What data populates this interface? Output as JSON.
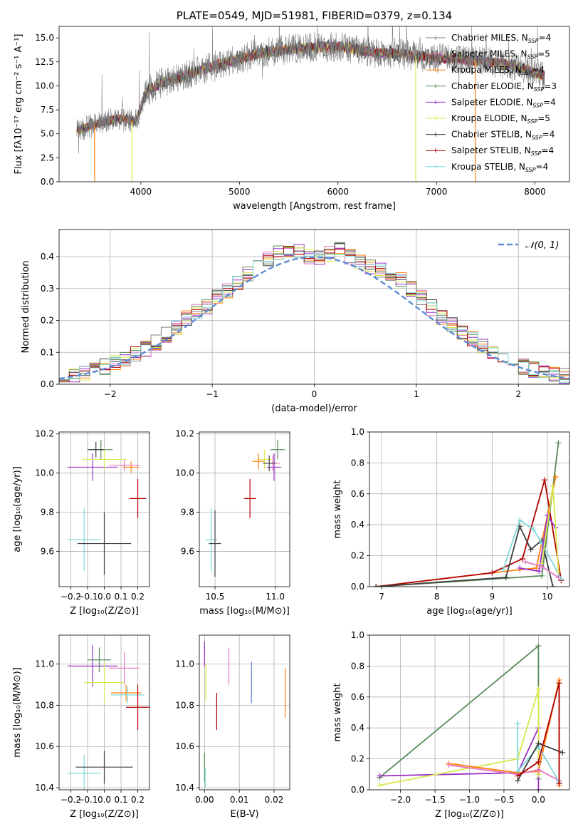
{
  "colors": {
    "chabrier_miles": "#808080",
    "salpeter_miles": "#e377c2",
    "kroupa_miles": "#ff7f0e",
    "chabrier_elodie": "#5a8a5a",
    "salpeter_elodie": "#9b30c8",
    "kroupa_elodie": "#d8e84a",
    "chabrier_stelib": "#404040",
    "salpeter_stelib": "#b00000",
    "kroupa_stelib": "#7fd8d8",
    "normal_curve": "#5b8bd4"
  },
  "chart_data": [
    {
      "id": "spectrum",
      "type": "line",
      "title": "PLATE=0549, MJD=51981, FIBERID=0379, z=0.134",
      "xlabel": "wavelength [Angstrom, rest frame]",
      "ylabel": "Flux [fλ10⁻¹⁷ erg cm⁻² s⁻¹ A⁻¹]",
      "xlim": [
        3170,
        8350
      ],
      "ylim": [
        0,
        16.2
      ],
      "xticks": [
        4000,
        5000,
        6000,
        7000,
        8000
      ],
      "yticks": [
        0.0,
        2.5,
        5.0,
        7.5,
        10.0,
        12.5,
        15.0
      ],
      "legend": "upper-right",
      "continuum": {
        "x": [
          3350,
          3500,
          3650,
          3800,
          3950,
          4050,
          4200,
          4400,
          4600,
          4800,
          5000,
          5200,
          5400,
          5600,
          5800,
          6000,
          6200,
          6400,
          6600,
          6800,
          7000,
          7200,
          7400,
          7600,
          7800,
          8000,
          8100
        ],
        "y": [
          5.3,
          5.9,
          6.3,
          6.6,
          6.3,
          9.3,
          10.3,
          10.9,
          11.6,
          12.3,
          12.8,
          13.4,
          13.7,
          13.9,
          14.0,
          14.1,
          13.8,
          13.4,
          13.4,
          13.1,
          12.9,
          12.8,
          12.6,
          12.4,
          12.0,
          11.4,
          11.0
        ]
      },
      "series": [
        {
          "name": "Chabrier MILES, N_SSP=4",
          "label_main": "Chabrier MILES, N",
          "label_sub": "SSP",
          "label_tail": "=4",
          "color_key": "chabrier_miles"
        },
        {
          "name": "Salpeter MILES, N_SSP=5",
          "label_main": "Salpeter MILES, N",
          "label_sub": "SSP",
          "label_tail": "=5",
          "color_key": "salpeter_miles"
        },
        {
          "name": "Kroupa MILES, N_SSP=4",
          "label_main": "Kroupa MILES, N",
          "label_sub": "SSP",
          "label_tail": "=4",
          "color_key": "kroupa_miles"
        },
        {
          "name": "Chabrier ELODIE, N_SSP=3",
          "label_main": "Chabrier ELODIE, N",
          "label_sub": "SSP",
          "label_tail": "=3",
          "color_key": "chabrier_elodie"
        },
        {
          "name": "Salpeter ELODIE, N_SSP=4",
          "label_main": "Salpeter ELODIE, N",
          "label_sub": "SSP",
          "label_tail": "=4",
          "color_key": "salpeter_elodie"
        },
        {
          "name": "Kroupa ELODIE, N_SSP=5",
          "label_main": "Kroupa ELODIE, N",
          "label_sub": "SSP",
          "label_tail": "=5",
          "color_key": "kroupa_elodie"
        },
        {
          "name": "Chabrier STELIB, N_SSP=4",
          "label_main": "Chabrier STELIB, N",
          "label_sub": "SSP",
          "label_tail": "=4",
          "color_key": "chabrier_stelib"
        },
        {
          "name": "Salpeter STELIB, N_SSP=4",
          "label_main": "Salpeter STELIB, N",
          "label_sub": "SSP",
          "label_tail": "=4",
          "color_key": "salpeter_stelib"
        },
        {
          "name": "Kroupa STELIB, N_SSP=4",
          "label_main": "Kroupa STELIB, N",
          "label_sub": "SSP",
          "label_tail": "=4",
          "color_key": "kroupa_stelib"
        }
      ],
      "drops": [
        {
          "x": 3530,
          "color_key": "kroupa_miles"
        },
        {
          "x": 3910,
          "color_key": "kroupa_elodie"
        },
        {
          "x": 6790,
          "color_key": "kroupa_elodie"
        },
        {
          "x": 7395,
          "color_key": "kroupa_miles"
        }
      ]
    },
    {
      "id": "residuals",
      "type": "histogram",
      "xlabel": "(data-model)/error",
      "ylabel": "Normed distribution",
      "xlim": [
        -2.5,
        2.5
      ],
      "ylim": [
        0,
        0.485
      ],
      "xticks": [
        -2,
        -1,
        0,
        1,
        2
      ],
      "xtick_labels": [
        "−2",
        "−1",
        "0",
        "1",
        "2"
      ],
      "yticks": [
        0.0,
        0.1,
        0.2,
        0.3,
        0.4
      ],
      "grid": true,
      "bin_width": 0.1,
      "curve_label": "𝒩(0, 1)",
      "legend": "upper-right",
      "bins_center": [
        -2.45,
        -2.35,
        -2.25,
        -2.15,
        -2.05,
        -1.95,
        -1.85,
        -1.75,
        -1.65,
        -1.55,
        -1.45,
        -1.35,
        -1.25,
        -1.15,
        -1.05,
        -0.95,
        -0.85,
        -0.75,
        -0.65,
        -0.55,
        -0.45,
        -0.35,
        -0.25,
        -0.15,
        -0.05,
        0.05,
        0.15,
        0.25,
        0.35,
        0.45,
        0.55,
        0.65,
        0.75,
        0.85,
        0.95,
        1.05,
        1.15,
        1.25,
        1.35,
        1.45,
        1.55,
        1.65,
        1.75,
        1.85,
        1.95,
        2.05,
        2.15,
        2.25,
        2.35,
        2.45
      ],
      "hist_values": [
        0.02,
        0.025,
        0.035,
        0.045,
        0.055,
        0.065,
        0.08,
        0.095,
        0.11,
        0.13,
        0.155,
        0.18,
        0.205,
        0.225,
        0.245,
        0.27,
        0.295,
        0.32,
        0.345,
        0.37,
        0.39,
        0.41,
        0.42,
        0.415,
        0.4,
        0.4,
        0.41,
        0.42,
        0.4,
        0.385,
        0.37,
        0.355,
        0.345,
        0.33,
        0.3,
        0.27,
        0.24,
        0.21,
        0.185,
        0.16,
        0.14,
        0.12,
        0.1,
        0.085,
        0.07,
        0.055,
        0.045,
        0.035,
        0.03,
        0.025
      ]
    },
    {
      "id": "age_vs_z",
      "type": "scatter",
      "xlabel": "Z [log₁₀(Z/Z⊙)]",
      "ylabel": "age  [log₁₀(age/yr)]",
      "xlim": [
        -0.27,
        0.27
      ],
      "ylim": [
        9.42,
        10.21
      ],
      "xticks": [
        -0.2,
        -0.1,
        0.0,
        0.1,
        0.2
      ],
      "xtick_labels": [
        "−0.2",
        "−0.1",
        "0.0",
        "0.1",
        "0.2"
      ],
      "yticks": [
        9.6,
        9.8,
        10.0,
        10.2
      ],
      "grid": true,
      "points": [
        {
          "color_key": "salpeter_elodie",
          "x": -0.07,
          "xerr": 0.15,
          "y": 10.03,
          "yerr": 0.07
        },
        {
          "color_key": "chabrier_elodie",
          "x": -0.02,
          "xerr": 0.07,
          "y": 10.12,
          "yerr": 0.05
        },
        {
          "color_key": "chabrier_stelib",
          "x": -0.05,
          "xerr": 0.05,
          "y": 10.12,
          "yerr": 0.04
        },
        {
          "color_key": "kroupa_elodie",
          "x": 0.0,
          "xerr": 0.13,
          "y": 10.07,
          "yerr": 0.05
        },
        {
          "color_key": "salpeter_miles",
          "x": 0.12,
          "xerr": 0.09,
          "y": 10.04,
          "yerr": 0.03
        },
        {
          "color_key": "kroupa_miles",
          "x": 0.16,
          "xerr": 0.05,
          "y": 10.03,
          "yerr": 0.03
        },
        {
          "color_key": "salpeter_stelib",
          "x": 0.2,
          "xerr": 0.05,
          "y": 9.87,
          "yerr": 0.1
        },
        {
          "color_key": "kroupa_stelib",
          "x": -0.12,
          "xerr": 0.1,
          "y": 9.66,
          "yerr": 0.16
        },
        {
          "color_key": "chabrier_stelib",
          "x": 0.0,
          "xerr": 0.16,
          "y": 9.64,
          "yerr": 0.16
        }
      ]
    },
    {
      "id": "age_vs_mass",
      "type": "scatter",
      "xlabel": "mass [log₁₀(M/M⊙)]",
      "ylabel": "",
      "xlim": [
        10.37,
        11.12
      ],
      "ylim": [
        9.42,
        10.21
      ],
      "xticks": [
        10.5,
        11.0
      ],
      "xtick_labels": [
        "10.5",
        "11.0"
      ],
      "yticks": [
        9.6,
        9.8,
        10.0,
        10.2
      ],
      "grid": true,
      "points": [
        {
          "color_key": "chabrier_elodie",
          "x": 11.02,
          "xerr": 0.06,
          "y": 10.12,
          "yerr": 0.05
        },
        {
          "color_key": "salpeter_elodie",
          "x": 10.99,
          "xerr": 0.06,
          "y": 10.03,
          "yerr": 0.07
        },
        {
          "color_key": "kroupa_elodie",
          "x": 10.91,
          "xerr": 0.06,
          "y": 10.07,
          "yerr": 0.05
        },
        {
          "color_key": "salpeter_miles",
          "x": 10.98,
          "xerr": 0.06,
          "y": 10.05,
          "yerr": 0.04
        },
        {
          "color_key": "kroupa_miles",
          "x": 10.86,
          "xerr": 0.05,
          "y": 10.06,
          "yerr": 0.04
        },
        {
          "color_key": "chabrier_stelib",
          "x": 10.95,
          "xerr": 0.05,
          "y": 10.05,
          "yerr": 0.04
        },
        {
          "color_key": "salpeter_stelib",
          "x": 10.79,
          "xerr": 0.05,
          "y": 9.87,
          "yerr": 0.1
        },
        {
          "color_key": "kroupa_stelib",
          "x": 10.47,
          "xerr": 0.05,
          "y": 9.66,
          "yerr": 0.16
        },
        {
          "color_key": "chabrier_stelib",
          "x": 10.5,
          "xerr": 0.05,
          "y": 9.64,
          "yerr": 0.17
        }
      ]
    },
    {
      "id": "massweight_vs_age",
      "type": "line",
      "xlabel": "age  [log₁₀(age/yr)]",
      "ylabel": "mass weight",
      "xlim": [
        6.78,
        10.4
      ],
      "ylim": [
        0,
        1.0
      ],
      "xticks": [
        7,
        8,
        9,
        10
      ],
      "yticks": [
        0.0,
        0.2,
        0.4,
        0.6,
        0.8,
        1.0
      ],
      "grid": true,
      "series": [
        {
          "color_key": "chabrier_elodie",
          "x": [
            6.9,
            9.9,
            10.2
          ],
          "y": [
            0.0,
            0.07,
            0.93
          ]
        },
        {
          "color_key": "kroupa_miles",
          "x": [
            6.9,
            9.5,
            9.8,
            10.15
          ],
          "y": [
            0.0,
            0.11,
            0.12,
            0.71
          ]
        },
        {
          "color_key": "salpeter_stelib",
          "x": [
            6.9,
            9.0,
            9.55,
            9.95,
            10.25
          ],
          "y": [
            0.0,
            0.09,
            0.18,
            0.69,
            0.04
          ]
        },
        {
          "color_key": "chabrier_stelib",
          "x": [
            6.9,
            9.25,
            9.5,
            9.7,
            9.9,
            10.1
          ],
          "y": [
            0.0,
            0.06,
            0.39,
            0.24,
            0.3,
            0.0
          ]
        },
        {
          "color_key": "kroupa_stelib",
          "x": [
            9.2,
            9.5,
            9.75,
            9.9,
            10.25
          ],
          "y": [
            0.11,
            0.43,
            0.37,
            0.28,
            0.05
          ]
        },
        {
          "color_key": "salpeter_elodie",
          "x": [
            9.5,
            9.85,
            10.0,
            10.15
          ],
          "y": [
            0.12,
            0.1,
            0.46,
            0.38
          ]
        },
        {
          "color_key": "kroupa_elodie",
          "x": [
            9.9,
            10.1,
            10.2
          ],
          "y": [
            0.15,
            0.65,
            0.1
          ]
        },
        {
          "color_key": "salpeter_miles",
          "x": [
            9.6,
            9.9,
            10.2
          ],
          "y": [
            0.16,
            0.13,
            0.06
          ]
        }
      ]
    },
    {
      "id": "mass_vs_z",
      "type": "scatter",
      "xlabel": "Z [log₁₀(Z/Z⊙)]",
      "ylabel": "mass [log₁₀(M/M⊙)]",
      "xlim": [
        -0.27,
        0.27
      ],
      "ylim": [
        10.39,
        11.14
      ],
      "xticks": [
        -0.2,
        -0.1,
        0.0,
        0.1,
        0.2
      ],
      "xtick_labels": [
        "−0.2",
        "−0.1",
        "0.0",
        "0.1",
        "0.2"
      ],
      "yticks": [
        10.4,
        10.6,
        10.8,
        11.0
      ],
      "grid": true,
      "points": [
        {
          "color_key": "salpeter_elodie",
          "x": -0.07,
          "xerr": 0.15,
          "y": 10.99,
          "yerr": 0.1
        },
        {
          "color_key": "chabrier_elodie",
          "x": -0.03,
          "xerr": 0.07,
          "y": 11.02,
          "yerr": 0.06
        },
        {
          "color_key": "salpeter_miles",
          "x": 0.12,
          "xerr": 0.09,
          "y": 10.98,
          "yerr": 0.08
        },
        {
          "color_key": "kroupa_elodie",
          "x": 0.0,
          "xerr": 0.12,
          "y": 10.91,
          "yerr": 0.1
        },
        {
          "color_key": "kroupa_miles",
          "x": 0.13,
          "xerr": 0.09,
          "y": 10.86,
          "yerr": 0.04
        },
        {
          "color_key": "kroupa_stelib",
          "x": 0.14,
          "xerr": 0.1,
          "y": 10.85,
          "yerr": 0.04
        },
        {
          "color_key": "salpeter_stelib",
          "x": 0.2,
          "xerr": 0.07,
          "y": 10.79,
          "yerr": 0.11
        },
        {
          "color_key": "kroupa_stelib",
          "x": -0.12,
          "xerr": 0.1,
          "y": 10.47,
          "yerr": 0.09
        },
        {
          "color_key": "chabrier_stelib",
          "x": 0.0,
          "xerr": 0.17,
          "y": 10.5,
          "yerr": 0.08
        }
      ]
    },
    {
      "id": "mass_vs_ebv",
      "type": "scatter",
      "xlabel": "E(B-V)",
      "ylabel": "",
      "xlim": [
        -0.0015,
        0.0245
      ],
      "ylim": [
        10.39,
        11.14
      ],
      "xticks": [
        0.0,
        0.01,
        0.02
      ],
      "xtick_labels": [
        "0.00",
        "0.01",
        "0.02"
      ],
      "yticks": [
        10.4,
        10.6,
        10.8,
        11.0
      ],
      "grid": true,
      "points": [
        {
          "color_key": "salpeter_elodie",
          "x": 0.0,
          "xerr": 0,
          "y": 11.05,
          "yerr": 0.06
        },
        {
          "color_key": "kroupa_elodie",
          "x": 0.0004,
          "xerr": 0,
          "y": 10.91,
          "yerr": 0.09
        },
        {
          "color_key": "chabrier_elodie",
          "x": 0.0,
          "xerr": 0,
          "y": 10.5,
          "yerr": 0.07
        },
        {
          "color_key": "kroupa_stelib",
          "x": 0.0002,
          "xerr": 0,
          "y": 10.45,
          "yerr": 0.05
        },
        {
          "color_key": "salpeter_miles",
          "x": 0.007,
          "xerr": 0,
          "y": 10.99,
          "yerr": 0.09
        },
        {
          "color_key": "salpeter_stelib",
          "x": 0.0035,
          "xerr": 0,
          "y": 10.77,
          "yerr": 0.09
        },
        {
          "color_key": "normal_curve",
          "x": 0.0135,
          "xerr": 0,
          "y": 10.91,
          "yerr": 0.1
        },
        {
          "color_key": "kroupa_miles",
          "x": 0.0232,
          "xerr": 0,
          "y": 10.86,
          "yerr": 0.12
        }
      ]
    },
    {
      "id": "massweight_vs_z",
      "type": "line",
      "xlabel": "Z [log₁₀(Z/Z⊙)]",
      "ylabel": "mass weight",
      "xlim": [
        -2.45,
        0.45
      ],
      "ylim": [
        0,
        1.0
      ],
      "xticks": [
        -2.0,
        -1.5,
        -1.0,
        -0.5,
        0.0
      ],
      "xtick_labels": [
        "−2.0",
        "−1.5",
        "−1.0",
        "−0.5",
        "0.0"
      ],
      "yticks": [
        0.0,
        0.2,
        0.4,
        0.6,
        0.8,
        1.0
      ],
      "grid": true,
      "series": [
        {
          "color_key": "chabrier_elodie",
          "x": [
            -2.3,
            0.0,
            0.0
          ],
          "y": [
            0.08,
            0.93,
            0.07
          ]
        },
        {
          "color_key": "salpeter_elodie",
          "x": [
            -2.3,
            -0.3,
            0.0,
            0.0
          ],
          "y": [
            0.09,
            0.11,
            0.4,
            0.0
          ]
        },
        {
          "color_key": "kroupa_elodie",
          "x": [
            -2.3,
            -0.3,
            0.0,
            0.0
          ],
          "y": [
            0.03,
            0.2,
            0.65,
            0.1
          ]
        },
        {
          "color_key": "kroupa_miles",
          "x": [
            -1.3,
            -0.3,
            0.0,
            0.3,
            0.3
          ],
          "y": [
            0.17,
            0.11,
            0.12,
            0.71,
            0.03
          ]
        },
        {
          "color_key": "salpeter_miles",
          "x": [
            -1.3,
            -0.3,
            0.0,
            0.3
          ],
          "y": [
            0.16,
            0.1,
            0.13,
            0.06
          ]
        },
        {
          "color_key": "kroupa_stelib",
          "x": [
            -0.3,
            -0.3,
            0.0,
            0.3
          ],
          "y": [
            0.43,
            0.12,
            0.28,
            0.05
          ]
        },
        {
          "color_key": "chabrier_stelib",
          "x": [
            -0.3,
            0.0,
            0.35
          ],
          "y": [
            0.06,
            0.3,
            0.24
          ]
        },
        {
          "color_key": "salpeter_stelib",
          "x": [
            -0.3,
            0.0,
            0.3,
            0.3
          ],
          "y": [
            0.09,
            0.18,
            0.69,
            0.04
          ]
        }
      ]
    }
  ]
}
